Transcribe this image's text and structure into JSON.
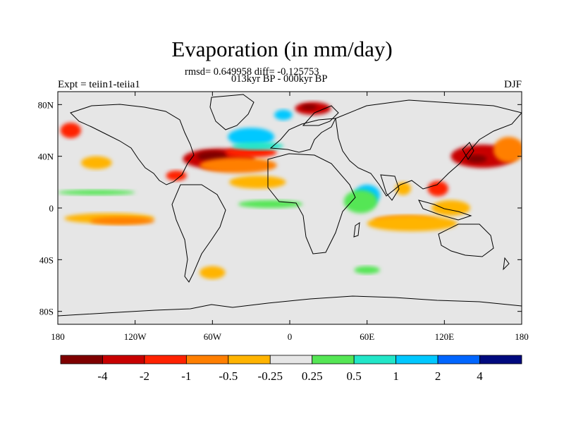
{
  "title": "Evaporation (in mm/day)",
  "stats_line1": "rmsd= 0.649958 diff= -0.125753",
  "stats_line2": "013kyr BP - 000kyr BP",
  "left_label": "Expt = teiin1-teiia1",
  "right_label": "DJF",
  "map": {
    "projection": "cylindrical equidistant",
    "lon_range": [
      -180,
      180
    ],
    "lat_range": [
      -90,
      90
    ],
    "land_color": "#e6e6e6",
    "coastline_color": "#000000",
    "x_ticks": [
      {
        "lon": -180,
        "label": "180"
      },
      {
        "lon": -120,
        "label": "120W"
      },
      {
        "lon": -60,
        "label": "60W"
      },
      {
        "lon": 0,
        "label": "0"
      },
      {
        "lon": 60,
        "label": "60E"
      },
      {
        "lon": 120,
        "label": "120E"
      },
      {
        "lon": 180,
        "label": "180"
      }
    ],
    "y_ticks": [
      {
        "lat": 80,
        "label": "80N"
      },
      {
        "lat": 40,
        "label": "40N"
      },
      {
        "lat": 0,
        "label": "0"
      },
      {
        "lat": -40,
        "label": "40S"
      },
      {
        "lat": -80,
        "label": "80S"
      }
    ]
  },
  "colorbar": {
    "colors": [
      "#7f0000",
      "#c80000",
      "#ff2200",
      "#ff7f00",
      "#ffb400",
      "#e6e6e6",
      "#55e655",
      "#22e6c8",
      "#00c8ff",
      "#0066ff",
      "#000a7f"
    ],
    "labels": [
      {
        "boundary": 1,
        "text": "-4"
      },
      {
        "boundary": 2,
        "text": "-2"
      },
      {
        "boundary": 3,
        "text": "-1"
      },
      {
        "boundary": 4,
        "text": "-0.5"
      },
      {
        "boundary": 5,
        "text": "-0.25"
      },
      {
        "boundary": 6,
        "text": "0.25"
      },
      {
        "boundary": 7,
        "text": "0.5"
      },
      {
        "boundary": 8,
        "text": "1"
      },
      {
        "boundary": 9,
        "text": "2"
      },
      {
        "boundary": 10,
        "text": "4"
      }
    ]
  },
  "anomaly_regions": [
    {
      "region": "North Atlantic west",
      "lon": -55,
      "lat": 38,
      "dlon": 28,
      "dlat": 8,
      "level": -4,
      "color": "#c80000"
    },
    {
      "region": "North Atlantic west core",
      "lon": -60,
      "lat": 40,
      "dlon": 12,
      "dlat": 4,
      "level": -5,
      "color": "#7f0000"
    },
    {
      "region": "North Atlantic mid band",
      "lon": -30,
      "lat": 43,
      "dlon": 20,
      "dlat": 4,
      "level": -2,
      "color": "#ff2200"
    },
    {
      "region": "North Atlantic band orange",
      "lon": -40,
      "lat": 33,
      "dlon": 30,
      "dlat": 6,
      "level": -1,
      "color": "#ff7f00"
    },
    {
      "region": "North Atlantic blue band",
      "lon": -30,
      "lat": 55,
      "dlon": 18,
      "dlat": 7,
      "level": 1,
      "color": "#00c8ff"
    },
    {
      "region": "North Atlantic cyan band",
      "lon": -25,
      "lat": 48,
      "dlon": 20,
      "dlat": 3,
      "level": 0.5,
      "color": "#22e6c8"
    },
    {
      "region": "Nordic Seas",
      "lon": 18,
      "lat": 77,
      "dlon": 14,
      "dlat": 5,
      "level": -4,
      "color": "#c80000"
    },
    {
      "region": "Nordic Seas core",
      "lon": 15,
      "lat": 78,
      "dlon": 6,
      "dlat": 2,
      "level": -5,
      "color": "#7f0000"
    },
    {
      "region": "Barents blue",
      "lon": -5,
      "lat": 72,
      "dlon": 7,
      "dlat": 4,
      "level": 1,
      "color": "#00c8ff"
    },
    {
      "region": "North Pacific west",
      "lon": 150,
      "lat": 40,
      "dlon": 25,
      "dlat": 9,
      "level": -4,
      "color": "#c80000"
    },
    {
      "region": "North Pacific west core",
      "lon": 145,
      "lat": 38,
      "dlon": 8,
      "dlat": 3,
      "level": -5,
      "color": "#7f0000"
    },
    {
      "region": "Kuroshio orange",
      "lon": 170,
      "lat": 45,
      "dlon": 12,
      "dlat": 10,
      "level": -1,
      "color": "#ff7f00"
    },
    {
      "region": "Bering",
      "lon": -170,
      "lat": 60,
      "dlon": 8,
      "dlat": 6,
      "level": -2,
      "color": "#ff2200"
    },
    {
      "region": "Arabian Sea",
      "lon": 60,
      "lat": 10,
      "dlon": 10,
      "dlat": 8,
      "level": 1,
      "color": "#00c8ff"
    },
    {
      "region": "Arabian Sea green",
      "lon": 55,
      "lat": 5,
      "dlon": 13,
      "dlat": 9,
      "level": 0.5,
      "color": "#55e655"
    },
    {
      "region": "Tropical Pacific south",
      "lon": -140,
      "lat": -8,
      "dlon": 35,
      "dlat": 4,
      "level": -0.5,
      "color": "#ffb400"
    },
    {
      "region": "Tropical Pacific south orange",
      "lon": -130,
      "lat": -10,
      "dlon": 25,
      "dlat": 3,
      "level": -1,
      "color": "#ff7f00"
    },
    {
      "region": "Indian Ocean south",
      "lon": 90,
      "lat": -10,
      "dlon": 25,
      "dlat": 4,
      "level": -1,
      "color": "#ff7f00"
    },
    {
      "region": "Indian Ocean south yellow",
      "lon": 95,
      "lat": -12,
      "dlon": 35,
      "dlat": 6,
      "level": -0.5,
      "color": "#ffb400"
    },
    {
      "region": "Equatorial Atlantic green",
      "lon": -15,
      "lat": 3,
      "dlon": 25,
      "dlat": 3,
      "level": 0.5,
      "color": "#55e655"
    },
    {
      "region": "Tropical Atlantic north yellow",
      "lon": -25,
      "lat": 20,
      "dlon": 22,
      "dlat": 5,
      "level": -0.5,
      "color": "#ffb400"
    },
    {
      "region": "East Pacific green",
      "lon": -150,
      "lat": 12,
      "dlon": 30,
      "dlat": 2,
      "level": 0.5,
      "color": "#55e655"
    },
    {
      "region": "Southern Ocean west",
      "lon": -60,
      "lat": -50,
      "dlon": 10,
      "dlat": 5,
      "level": -0.5,
      "color": "#ffb400"
    },
    {
      "region": "Southern Indian green",
      "lon": 60,
      "lat": -48,
      "dlon": 10,
      "dlat": 3,
      "level": 0.5,
      "color": "#55e655"
    },
    {
      "region": "Bay of Bengal yellow",
      "lon": 88,
      "lat": 15,
      "dlon": 6,
      "dlat": 5,
      "level": -0.5,
      "color": "#ffb400"
    },
    {
      "region": "South China Sea red",
      "lon": 115,
      "lat": 15,
      "dlon": 8,
      "dlat": 6,
      "level": -2,
      "color": "#ff2200"
    },
    {
      "region": "Maritime continent",
      "lon": 125,
      "lat": 0,
      "dlon": 15,
      "dlat": 6,
      "level": -0.5,
      "color": "#ffb400"
    },
    {
      "region": "Gulf of Mexico",
      "lon": -88,
      "lat": 25,
      "dlon": 8,
      "dlat": 4,
      "level": -2,
      "color": "#ff2200"
    },
    {
      "region": "Northeast Pacific yellow",
      "lon": -150,
      "lat": 35,
      "dlon": 12,
      "dlat": 5,
      "level": -0.5,
      "color": "#ffb400"
    }
  ]
}
